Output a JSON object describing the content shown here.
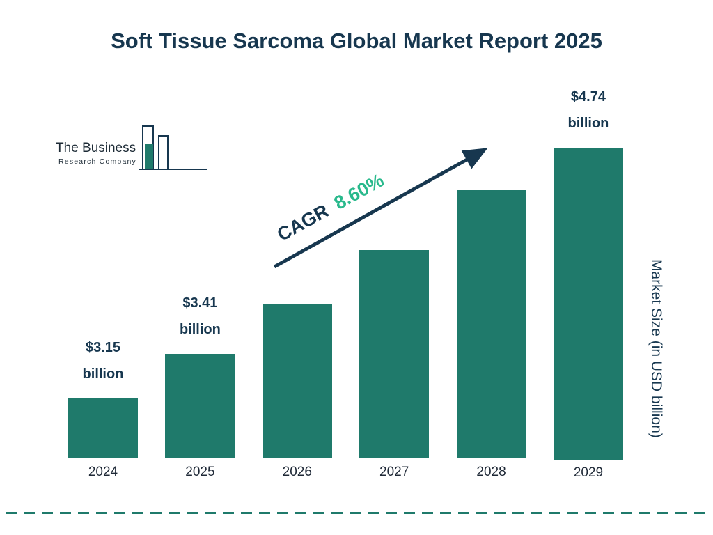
{
  "title": "Soft Tissue Sarcoma Global Market Report 2025",
  "logo": {
    "line1": "The Business",
    "line2": "Research Company"
  },
  "cagr": {
    "prefix": "CAGR",
    "value": "8.60%"
  },
  "ylabel": "Market Size (in USD billion)",
  "colors": {
    "bar": "#1F7A6B",
    "navy": "#17374F",
    "cagr_green": "#29B98C"
  },
  "chart_data": {
    "type": "bar",
    "title": "Soft Tissue Sarcoma Global Market Report 2025",
    "categories": [
      "2024",
      "2025",
      "2026",
      "2027",
      "2028",
      "2029"
    ],
    "values": [
      3.15,
      3.41,
      3.7,
      4.02,
      4.37,
      4.74
    ],
    "labels": [
      "$3.15\nbillion",
      "$3.41\nbillion",
      "",
      "",
      "",
      "$4.74\nbillion"
    ],
    "labeled_points": {
      "2024": "$3.15 billion",
      "2025": "$3.41 billion",
      "2029": "$4.74 billion"
    },
    "cagr": "8.60%",
    "xlabel": "",
    "ylabel": "Market Size (in USD billion)",
    "ylim": [
      2.8,
      4.8
    ],
    "grid": false,
    "legend": "none",
    "bar_color": "#1F7A6B"
  }
}
